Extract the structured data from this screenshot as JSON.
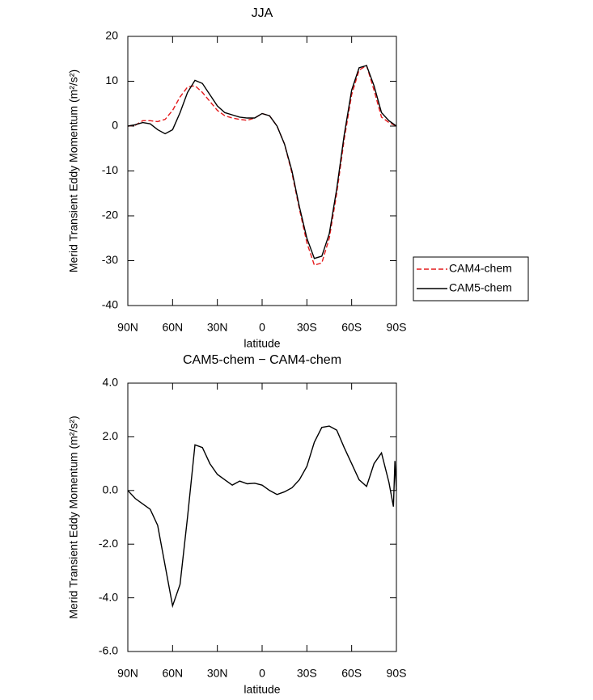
{
  "chart_data": [
    {
      "type": "line",
      "title": "JJA",
      "xlabel": "latitude",
      "ylabel": "Merid Transient Eddy Momentum (m²/s²)",
      "x": [
        90,
        85,
        80,
        75,
        70,
        65,
        60,
        55,
        50,
        45,
        40,
        35,
        30,
        25,
        20,
        15,
        10,
        5,
        0,
        -5,
        -10,
        -15,
        -20,
        -25,
        -30,
        -35,
        -40,
        -45,
        -50,
        -55,
        -60,
        -65,
        -70,
        -75,
        -80,
        -85,
        -90
      ],
      "xlim": [
        90,
        -90
      ],
      "xticks": [
        {
          "value": 90,
          "label": "90N"
        },
        {
          "value": 60,
          "label": "60N"
        },
        {
          "value": 30,
          "label": "30N"
        },
        0,
        {
          "value": -30,
          "label": "30S"
        },
        {
          "value": -60,
          "label": "60S"
        },
        {
          "value": -90,
          "label": "90S"
        }
      ],
      "ylim": [
        -40,
        20
      ],
      "yticks": [
        -40,
        -30,
        -20,
        -10,
        0,
        10,
        20
      ],
      "legend": "right",
      "series": [
        {
          "name": "CAM4-chem",
          "color": "#e41a1c",
          "line_style": "dashed",
          "values": [
            0,
            0.2,
            1.2,
            1.2,
            1.0,
            1.5,
            3.5,
            6.5,
            8.7,
            9,
            7.5,
            5.5,
            3.5,
            2.3,
            1.8,
            1.5,
            1.3,
            1.8,
            2.8,
            2.3,
            0,
            -4,
            -10.5,
            -18.5,
            -26,
            -31,
            -30.5,
            -25,
            -15,
            -3,
            7,
            12.5,
            13.5,
            8,
            2,
            0.8,
            0
          ]
        },
        {
          "name": "CAM5-chem",
          "color": "#000000",
          "line_style": "solid",
          "values": [
            0,
            0.3,
            0.8,
            0.5,
            -0.8,
            -1.7,
            -0.8,
            3,
            7.5,
            10.2,
            9.5,
            7,
            4.5,
            3,
            2.5,
            2,
            1.8,
            1.8,
            2.8,
            2.3,
            0,
            -4,
            -10,
            -18,
            -25,
            -29.5,
            -29,
            -24,
            -14,
            -2,
            8,
            13,
            13.5,
            9,
            3,
            1.2,
            0
          ]
        }
      ]
    },
    {
      "type": "line",
      "title": "CAM5-chem − CAM4-chem",
      "xlabel": "latitude",
      "ylabel": "Merid Transient Eddy Momentum (m²/s²)",
      "x": [
        90,
        85,
        80,
        75,
        70,
        65,
        60,
        55,
        50,
        45,
        40,
        35,
        30,
        25,
        20,
        15,
        10,
        5,
        0,
        -5,
        -10,
        -15,
        -20,
        -25,
        -30,
        -35,
        -40,
        -45,
        -50,
        -55,
        -60,
        -65,
        -70,
        -75,
        -80,
        -85,
        -88,
        -89,
        -90
      ],
      "xlim": [
        90,
        -90
      ],
      "xticks": [
        {
          "value": 90,
          "label": "90N"
        },
        {
          "value": 60,
          "label": "60N"
        },
        {
          "value": 30,
          "label": "30N"
        },
        0,
        {
          "value": -30,
          "label": "30S"
        },
        {
          "value": -60,
          "label": "60S"
        },
        {
          "value": -90,
          "label": "90S"
        }
      ],
      "ylim": [
        -6,
        4
      ],
      "yticks": [
        {
          "value": -6,
          "label": "-6.0"
        },
        {
          "value": -4,
          "label": "-4.0"
        },
        {
          "value": -2,
          "label": "-2.0"
        },
        {
          "value": 0,
          "label": "0.0"
        },
        {
          "value": 2,
          "label": "2.0"
        },
        {
          "value": 4,
          "label": "4.0"
        }
      ],
      "series": [
        {
          "color": "#000000",
          "line_style": "solid",
          "values": [
            0,
            -0.3,
            -0.5,
            -0.7,
            -1.3,
            -2.8,
            -4.3,
            -3.5,
            -1,
            1.7,
            1.6,
            1.0,
            0.6,
            0.4,
            0.2,
            0.35,
            0.25,
            0.27,
            0.2,
            0,
            -0.15,
            -0.05,
            0.1,
            0.4,
            0.9,
            1.8,
            2.35,
            2.4,
            2.25,
            1.6,
            1.0,
            0.4,
            0.15,
            1.0,
            1.4,
            0.3,
            -0.6,
            1.1,
            0
          ]
        }
      ]
    }
  ]
}
